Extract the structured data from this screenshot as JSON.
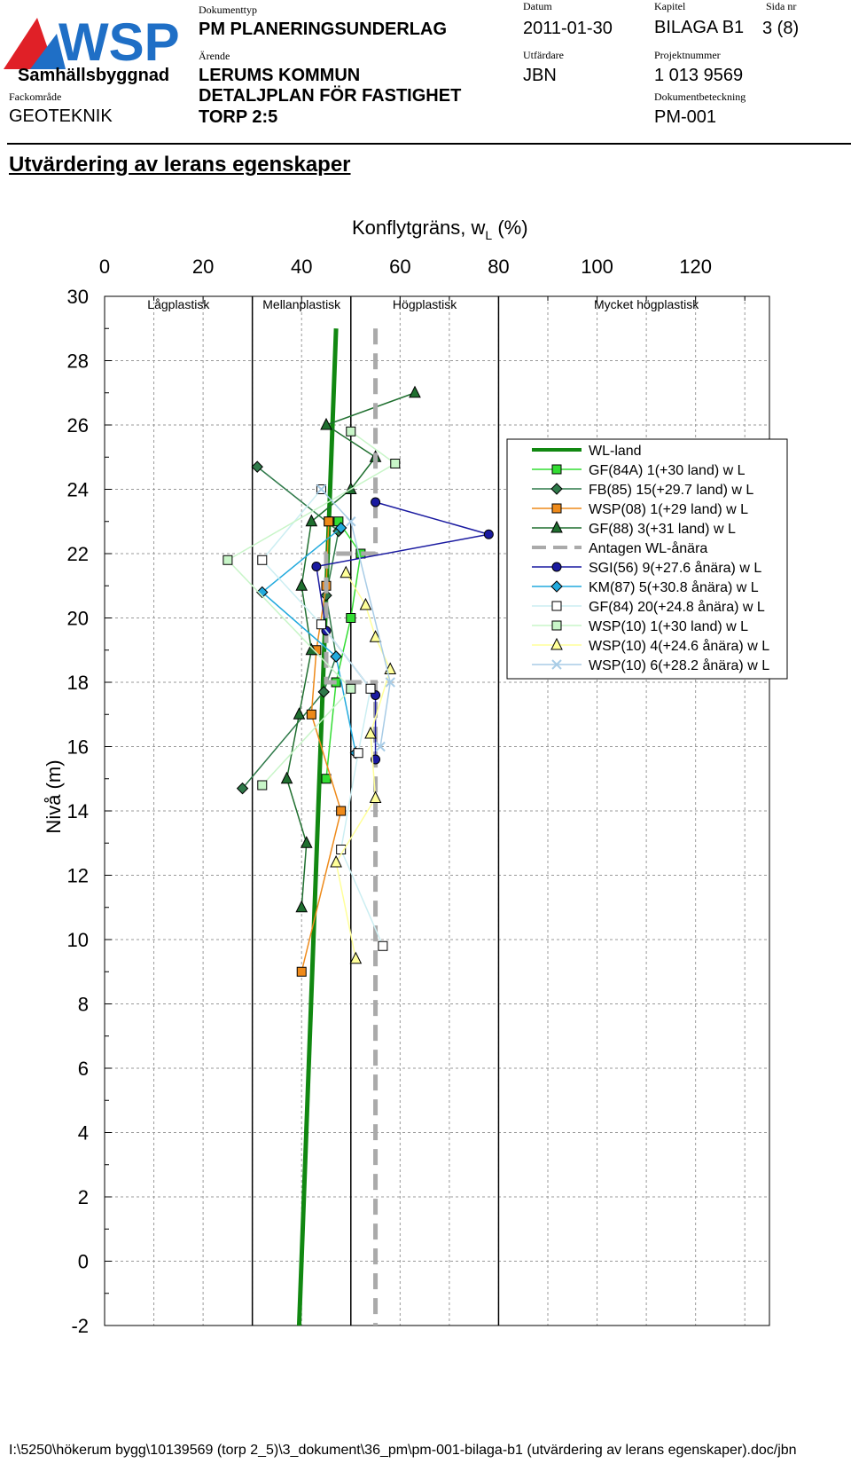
{
  "header": {
    "brand": "WSP",
    "unit": "Samhällsbyggnad",
    "fackomrade_label": "Fackområde",
    "fackomrade": "GEOTEKNIK",
    "dokumenttyp_label": "Dokumenttyp",
    "dokumenttyp": "PM PLANERINGSUNDERLAG",
    "arende_label": "Ärende",
    "arende_line1": "LERUMS KOMMUN",
    "arende_line2": "DETALJPLAN FÖR FASTIGHET",
    "arende_line3": "TORP 2:5",
    "datum_label": "Datum",
    "datum": "2011-01-30",
    "utfardare_label": "Utfärdare",
    "utfardare": "JBN",
    "kapitel_label": "Kapitel",
    "kapitel": "BILAGA B1",
    "projektnummer_label": "Projektnummer",
    "projektnummer": "1 013 9569",
    "dokumentbeteckning_label": "Dokumentbeteckning",
    "dokumentbeteckning": "PM-001",
    "sida_label": "Sida nr",
    "sida": "3 (8)",
    "colors": {
      "brand_blue": "#1f6fc6",
      "brand_red": "#e02027"
    }
  },
  "document_title": "Utvärdering av lerans egenskaper",
  "footer_path": "I:\\5250\\hökerum bygg\\10139569 (torp 2_5)\\3_dokument\\36_pm\\pm-001-bilaga-b1 (utvärdering av lerans egenskaper).doc/jbn",
  "chart_data": {
    "type": "line",
    "title_main": "Konflytgräns, w",
    "title_sub": "L",
    "title_unit": " (%)",
    "ylabel": "Nivå (m)",
    "xlim": [
      0,
      135
    ],
    "ylim": [
      -2,
      30
    ],
    "xticks": [
      0,
      20,
      40,
      60,
      80,
      100,
      120
    ],
    "yticks": [
      30,
      28,
      26,
      24,
      22,
      20,
      18,
      16,
      14,
      12,
      10,
      8,
      6,
      4,
      2,
      0,
      -2
    ],
    "grid": true,
    "legend_position": "right",
    "zones": [
      {
        "label": "Lågplastisk"
      },
      {
        "label": "Mellanplastisk"
      },
      {
        "label": "Högplastisk"
      },
      {
        "label": "Mycket högplastisk"
      }
    ],
    "zone_boundaries": [
      30,
      50,
      80
    ],
    "series": [
      {
        "name": "WL-land",
        "color": "#118811",
        "marker": "none",
        "width": 5,
        "x": [
          47,
          39.5
        ],
        "y": [
          29,
          -2
        ]
      },
      {
        "name": "GF(84A) 1(+30 land) w L",
        "color": "#33dd33",
        "marker": "square",
        "x": [
          45.5,
          47.5,
          52,
          50,
          47,
          45
        ],
        "y": [
          23,
          23,
          22,
          20,
          18,
          15
        ]
      },
      {
        "name": "FB(85) 15(+29.7 land) w L",
        "color": "#2f7a4a",
        "marker": "diamond",
        "x": [
          31,
          47.5,
          45,
          47,
          44.5,
          28
        ],
        "y": [
          24.7,
          22.7,
          20.7,
          18.8,
          17.7,
          14.7
        ]
      },
      {
        "name": "WSP(08) 1(+29 land) w L",
        "color": "#ee8a1a",
        "marker": "square",
        "x": [
          45.5,
          45,
          43,
          42,
          48,
          40
        ],
        "y": [
          23,
          21,
          19,
          17,
          14,
          9
        ]
      },
      {
        "name": "GF(88) 3(+31 land) w L",
        "color": "#1f6f2f",
        "marker": "triangle",
        "x": [
          63,
          45,
          55,
          50,
          42,
          40,
          42,
          39.5,
          37,
          41,
          40
        ],
        "y": [
          27,
          26,
          25,
          24,
          23,
          21,
          19,
          17,
          15,
          13,
          11
        ]
      },
      {
        "name": "Antagen WL-ånära",
        "color": "#aaaaaa",
        "marker": "none",
        "width": 5,
        "dash": true,
        "x": [
          55,
          55,
          45,
          45,
          55,
          55
        ],
        "y": [
          29,
          22,
          22,
          18,
          18,
          -2
        ]
      },
      {
        "name": "SGI(56) 9(+27.6 ånära) w L",
        "color": "#1a1aa0",
        "marker": "circle",
        "x": [
          55,
          78,
          43,
          45,
          55,
          55
        ],
        "y": [
          23.6,
          22.6,
          21.6,
          19.6,
          17.6,
          15.6
        ]
      },
      {
        "name": "KM(87) 5(+30.8 ånära) w L",
        "color": "#22aadd",
        "marker": "diamond",
        "x": [
          48,
          32,
          47,
          51
        ],
        "y": [
          22.8,
          20.8,
          18.8,
          15.8
        ]
      },
      {
        "name": "GF(84) 20(+24.8 ånära) w L",
        "color": "#cceef2",
        "marker": "square-open",
        "x": [
          44,
          32,
          44,
          54,
          51.5,
          48,
          56.5
        ],
        "y": [
          24,
          21.8,
          19.8,
          17.8,
          15.8,
          12.8,
          9.8
        ]
      },
      {
        "name": "WSP(10) 1(+30 land) w L",
        "color": "#c8f5c8",
        "marker": "square",
        "x": [
          50,
          59,
          25,
          50,
          32
        ],
        "y": [
          25.8,
          24.8,
          21.8,
          17.8,
          14.8
        ]
      },
      {
        "name": "WSP(10) 4(+24.6 ånära) w L",
        "color": "#ffff99",
        "marker": "triangle",
        "x": [
          49,
          53,
          55,
          58,
          54,
          55,
          47,
          51
        ],
        "y": [
          21.4,
          20.4,
          19.4,
          18.4,
          16.4,
          14.4,
          12.4,
          9.4
        ]
      },
      {
        "name": "WSP(10) 6(+28.2 ånära) w L",
        "color": "#a8cce6",
        "marker": "x",
        "x": [
          44,
          50,
          58,
          56
        ],
        "y": [
          24,
          23,
          18,
          16
        ]
      }
    ]
  }
}
